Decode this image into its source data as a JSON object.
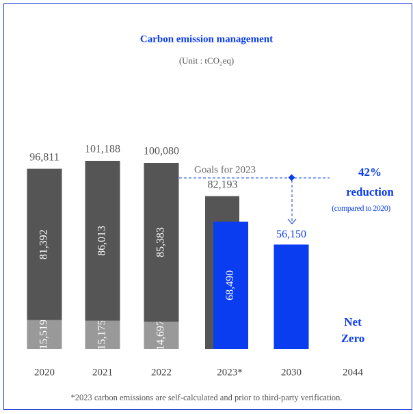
{
  "chart_data": {
    "type": "bar",
    "title": "Carbon emission management",
    "subtitle": "(Unit : tCO₂eq)",
    "categories": [
      "2020",
      "2021",
      "2022",
      "2023*",
      "2030",
      "2044"
    ],
    "series": [
      {
        "color": "#999999",
        "values": [
          15519,
          15175,
          14697,
          null,
          null,
          null
        ],
        "value_labels": [
          "15,519",
          "15,175",
          "14,697",
          null,
          null,
          null
        ]
      },
      {
        "color": "#555555",
        "values": [
          81392,
          86013,
          85383,
          null,
          null,
          null
        ],
        "value_labels": [
          "81,392",
          "86,013",
          "85,383",
          null,
          null,
          null
        ]
      },
      {
        "color": "#555555",
        "values": [
          null,
          null,
          null,
          82193,
          null,
          null
        ],
        "value_labels": [
          null,
          null,
          null,
          "82,193",
          null,
          null
        ]
      },
      {
        "color": "#0a3cf0",
        "values": [
          null,
          null,
          null,
          68490,
          56150,
          null
        ],
        "value_labels": [
          null,
          null,
          null,
          "68,490",
          "56,150",
          null
        ]
      }
    ],
    "totals": [
      96811,
      101188,
      100080,
      null,
      null,
      null
    ],
    "totals_labels": [
      "96,811",
      "101,188",
      "100,080",
      null,
      null,
      null
    ],
    "annotations": {
      "goal": "Goals for 2023",
      "percent": "42%",
      "reduction": "reduction",
      "compared": "(compared to 2020)",
      "net": "Net",
      "zero": "Zero"
    },
    "footnote": "*2023 carbon emissions are self-calculated and prior to third-party verification."
  }
}
